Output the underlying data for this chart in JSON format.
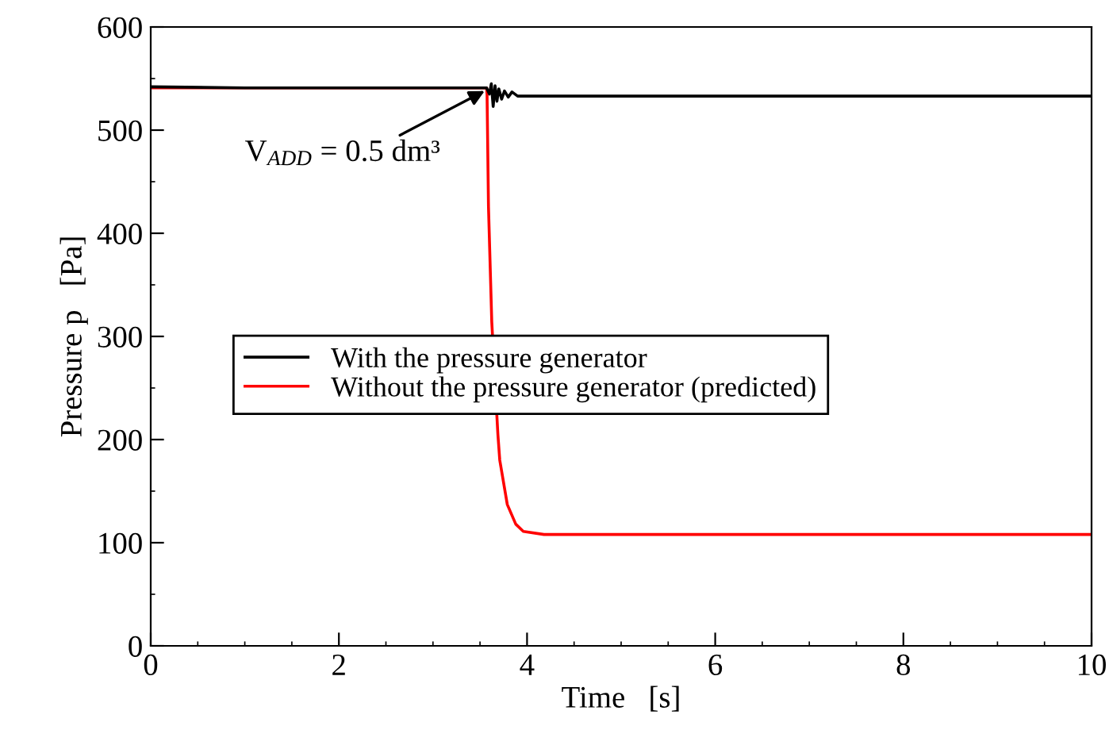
{
  "chart_data": {
    "type": "line",
    "xlabel": "Time   [s]",
    "ylabel": "Pressure p   [Pa]",
    "xlim": [
      0,
      10
    ],
    "xticks": [
      0,
      2,
      4,
      6,
      8,
      10
    ],
    "ylim": [
      0,
      600
    ],
    "yticks": [
      0,
      100,
      200,
      300,
      400,
      500,
      600
    ],
    "grid": false,
    "legend": "center left",
    "marker": "none",
    "line_style": "solid",
    "series": [
      {
        "name": "With the pressure generator",
        "color": "#000000",
        "x": [
          0,
          1.0,
          2.0,
          3.0,
          3.57,
          3.6,
          3.62,
          3.64,
          3.66,
          3.68,
          3.7,
          3.73,
          3.76,
          3.8,
          3.84,
          3.9,
          4.0,
          6.0,
          10.0
        ],
        "values": [
          542,
          541,
          541,
          541,
          541,
          535,
          545,
          523,
          543,
          528,
          540,
          530,
          538,
          532,
          537,
          533,
          533,
          533,
          533
        ]
      },
      {
        "name": "Without the pressure generator (predicted)",
        "color": "#ff0000",
        "x": [
          0,
          3.57,
          3.575,
          3.59,
          3.625,
          3.69,
          3.71,
          3.79,
          3.88,
          3.96,
          4.18,
          6.0,
          10.0
        ],
        "values": [
          541,
          541,
          534,
          426,
          314,
          205,
          180,
          137,
          118,
          111,
          108,
          108,
          108
        ]
      }
    ],
    "annotations": [
      {
        "text": "V$_{ADD}$ = 0.5 dm³",
        "x": 3.55,
        "y": 538
      }
    ]
  }
}
